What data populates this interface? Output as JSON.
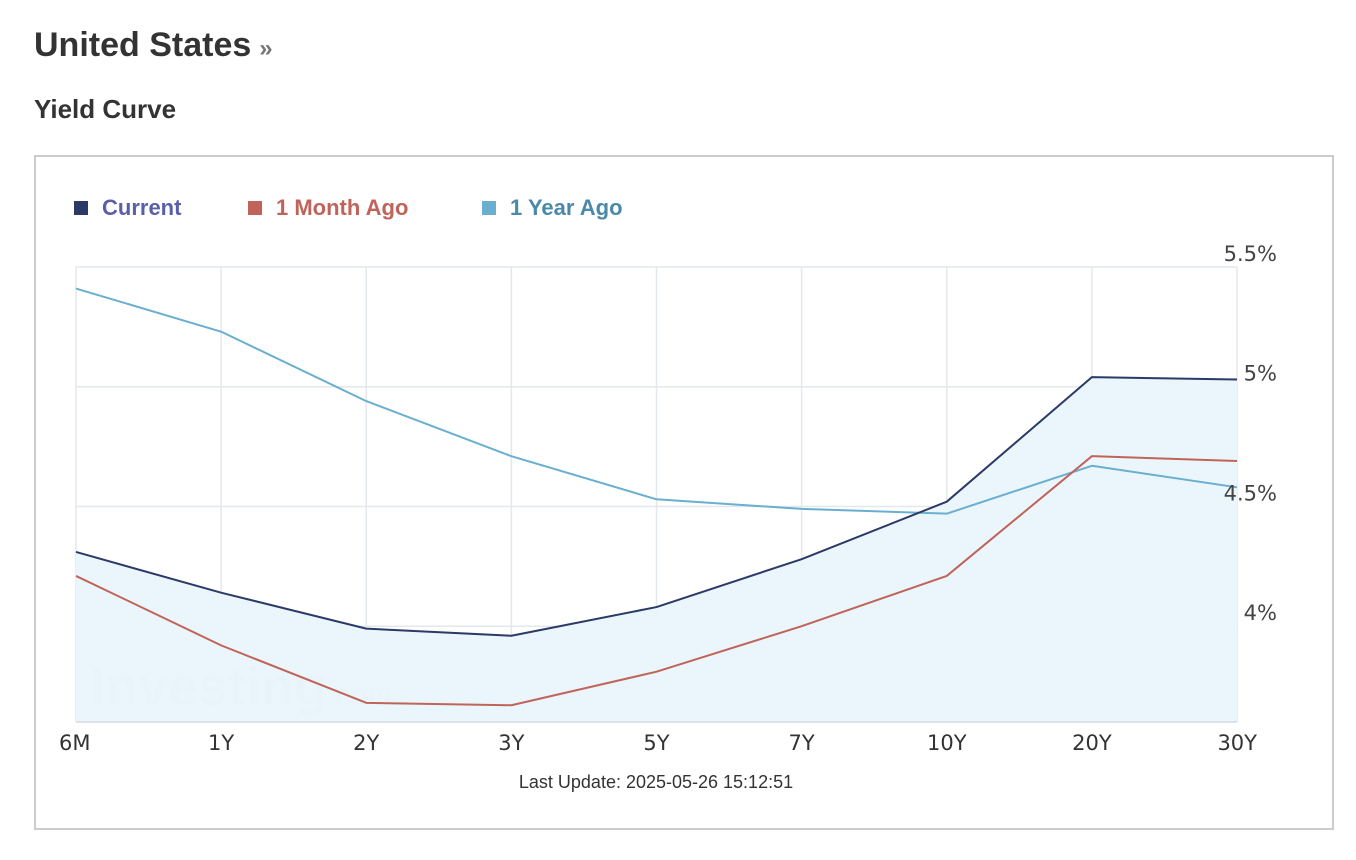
{
  "header": {
    "country": "United States",
    "chevron": "»",
    "section": "Yield Curve"
  },
  "watermark": "Investing.com",
  "footer": {
    "last_update": "Last Update: 2025-05-26 15:12:51"
  },
  "colors": {
    "current": "#2b3a67",
    "month_ago": "#c0645a",
    "year_ago": "#6aafd0",
    "area_fill": "#eaf5fc",
    "grid": "#e3e8ec"
  },
  "chart_data": {
    "type": "line",
    "categories": [
      "6M",
      "1Y",
      "2Y",
      "3Y",
      "5Y",
      "7Y",
      "10Y",
      "20Y",
      "30Y"
    ],
    "series": [
      {
        "name": "Current",
        "color": "#2b3a67",
        "text_color": "#5b5fa8",
        "filled": true,
        "values": [
          4.31,
          4.14,
          3.99,
          3.96,
          4.08,
          4.28,
          4.52,
          5.04,
          5.03
        ]
      },
      {
        "name": "1 Month Ago",
        "color": "#c0645a",
        "text_color": "#c0645a",
        "filled": false,
        "values": [
          4.21,
          3.92,
          3.68,
          3.67,
          3.81,
          4.0,
          4.21,
          4.71,
          4.69
        ]
      },
      {
        "name": "1 Year Ago",
        "color": "#6aafd0",
        "text_color": "#4a8aa8",
        "filled": false,
        "values": [
          5.41,
          5.23,
          4.94,
          4.71,
          4.53,
          4.49,
          4.47,
          4.67,
          4.58
        ]
      }
    ],
    "y_ticks": [
      {
        "value": 4.0,
        "label": "4%"
      },
      {
        "value": 4.5,
        "label": "4.5%"
      },
      {
        "value": 5.0,
        "label": "5%"
      },
      {
        "value": 5.5,
        "label": "5.5%"
      }
    ],
    "ylim": [
      3.6,
      5.5
    ],
    "y_axis_side": "right",
    "grid": true,
    "legend_position": "top-left"
  }
}
